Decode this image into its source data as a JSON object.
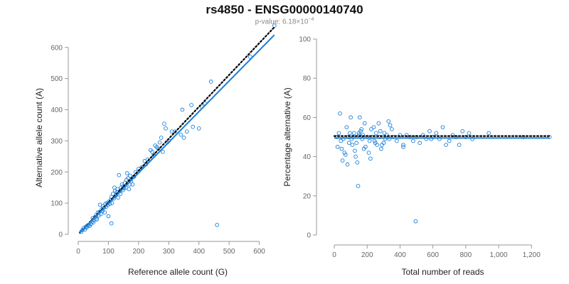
{
  "title": "rs4850 - ENSG00000140740",
  "subtitle": {
    "prefix": "p-value: 6.18×10",
    "exponent": "−4"
  },
  "colors": {
    "points": "#1a7fd9",
    "fit": "#1a7fd9",
    "reference": "#000000"
  },
  "chart_data": [
    {
      "type": "scatter",
      "xlabel": "Reference allele count (G)",
      "ylabel": "Alternative allele count (A)",
      "xlim": [
        0,
        660
      ],
      "ylim": [
        0,
        620
      ],
      "xticks": [
        0,
        100,
        200,
        300,
        400,
        500,
        600
      ],
      "yticks": [
        0,
        100,
        200,
        300,
        400,
        500,
        600
      ],
      "xtick_labels": [
        "0",
        "100",
        "200",
        "300",
        "400",
        "500",
        "600"
      ],
      "ytick_labels": [
        "0",
        "100",
        "200",
        "300",
        "400",
        "500",
        "600"
      ],
      "fit_line": {
        "from": [
          5,
          5
        ],
        "to": [
          650,
          640
        ]
      },
      "reference_line": {
        "from": [
          5,
          5
        ],
        "to": [
          650,
          665
        ]
      },
      "points": [
        [
          10,
          8
        ],
        [
          14,
          14
        ],
        [
          18,
          20
        ],
        [
          22,
          15
        ],
        [
          25,
          24
        ],
        [
          28,
          22
        ],
        [
          30,
          28
        ],
        [
          35,
          30
        ],
        [
          38,
          27
        ],
        [
          42,
          33
        ],
        [
          45,
          40
        ],
        [
          48,
          52
        ],
        [
          50,
          38
        ],
        [
          52,
          45
        ],
        [
          55,
          55
        ],
        [
          58,
          50
        ],
        [
          60,
          62
        ],
        [
          62,
          48
        ],
        [
          65,
          70
        ],
        [
          68,
          60
        ],
        [
          70,
          72
        ],
        [
          72,
          95
        ],
        [
          75,
          65
        ],
        [
          78,
          80
        ],
        [
          80,
          75
        ],
        [
          82,
          90
        ],
        [
          85,
          85
        ],
        [
          88,
          70
        ],
        [
          90,
          98
        ],
        [
          92,
          88
        ],
        [
          95,
          100
        ],
        [
          98,
          94
        ],
        [
          100,
          58
        ],
        [
          102,
          105
        ],
        [
          105,
          98
        ],
        [
          108,
          110
        ],
        [
          110,
          120
        ],
        [
          112,
          100
        ],
        [
          115,
          130
        ],
        [
          118,
          115
        ],
        [
          120,
          150
        ],
        [
          122,
          140
        ],
        [
          125,
          125
        ],
        [
          128,
          135
        ],
        [
          130,
          145
        ],
        [
          132,
          118
        ],
        [
          135,
          190
        ],
        [
          138,
          138
        ],
        [
          140,
          130
        ],
        [
          142,
          150
        ],
        [
          145,
          160
        ],
        [
          148,
          142
        ],
        [
          150,
          155
        ],
        [
          152,
          148
        ],
        [
          155,
          165
        ],
        [
          158,
          150
        ],
        [
          160,
          175
        ],
        [
          162,
          196
        ],
        [
          165,
          180
        ],
        [
          168,
          145
        ],
        [
          170,
          160
        ],
        [
          172,
          188
        ],
        [
          175,
          170
        ],
        [
          180,
          160
        ],
        [
          185,
          185
        ],
        [
          190,
          200
        ],
        [
          200,
          210
        ],
        [
          210,
          215
        ],
        [
          220,
          235
        ],
        [
          225,
          225
        ],
        [
          230,
          240
        ],
        [
          240,
          270
        ],
        [
          245,
          265
        ],
        [
          250,
          255
        ],
        [
          255,
          285
        ],
        [
          260,
          280
        ],
        [
          265,
          275
        ],
        [
          270,
          295
        ],
        [
          275,
          310
        ],
        [
          280,
          265
        ],
        [
          285,
          355
        ],
        [
          290,
          340
        ],
        [
          295,
          295
        ],
        [
          300,
          300
        ],
        [
          310,
          330
        ],
        [
          320,
          330
        ],
        [
          340,
          320
        ],
        [
          345,
          400
        ],
        [
          350,
          310
        ],
        [
          360,
          330
        ],
        [
          375,
          415
        ],
        [
          380,
          345
        ],
        [
          400,
          340
        ],
        [
          410,
          410
        ],
        [
          420,
          420
        ],
        [
          440,
          490
        ],
        [
          460,
          30
        ],
        [
          570,
          570
        ],
        [
          650,
          670
        ],
        [
          110,
          35
        ]
      ]
    },
    {
      "type": "scatter",
      "xlabel": "Total number of reads",
      "ylabel": "Percentage alternative (A)",
      "xlim": [
        0,
        1320
      ],
      "ylim": [
        0,
        100
      ],
      "xticks": [
        0,
        200,
        400,
        600,
        800,
        1000,
        1200
      ],
      "yticks": [
        0,
        20,
        40,
        60,
        80,
        100
      ],
      "xtick_labels": [
        "0",
        "200",
        "400",
        "600",
        "800",
        "1,000",
        "1,200"
      ],
      "ytick_labels": [
        "0",
        "20",
        "40",
        "60",
        "80",
        "100"
      ],
      "fit_line": {
        "from": [
          0,
          49.5
        ],
        "to": [
          1310,
          49.5
        ]
      },
      "reference_line": {
        "from": [
          0,
          50.5
        ],
        "to": [
          1310,
          50.5
        ]
      },
      "points": [
        [
          15,
          50
        ],
        [
          20,
          45
        ],
        [
          28,
          52
        ],
        [
          35,
          62
        ],
        [
          40,
          48
        ],
        [
          45,
          44
        ],
        [
          50,
          38
        ],
        [
          55,
          49
        ],
        [
          62,
          42
        ],
        [
          68,
          41
        ],
        [
          75,
          55
        ],
        [
          80,
          36
        ],
        [
          85,
          50
        ],
        [
          90,
          47
        ],
        [
          95,
          52
        ],
        [
          100,
          60
        ],
        [
          105,
          49
        ],
        [
          110,
          46
        ],
        [
          115,
          50
        ],
        [
          120,
          52
        ],
        [
          125,
          43
        ],
        [
          130,
          40
        ],
        [
          135,
          47
        ],
        [
          140,
          37
        ],
        [
          145,
          25
        ],
        [
          150,
          51
        ],
        [
          155,
          60
        ],
        [
          160,
          53
        ],
        [
          165,
          54
        ],
        [
          170,
          49
        ],
        [
          175,
          51
        ],
        [
          180,
          44
        ],
        [
          185,
          57
        ],
        [
          190,
          45
        ],
        [
          200,
          50
        ],
        [
          210,
          42
        ],
        [
          215,
          48
        ],
        [
          220,
          39
        ],
        [
          225,
          54
        ],
        [
          230,
          50
        ],
        [
          240,
          55
        ],
        [
          245,
          48
        ],
        [
          250,
          47
        ],
        [
          255,
          52
        ],
        [
          260,
          46
        ],
        [
          270,
          57
        ],
        [
          275,
          50
        ],
        [
          280,
          53
        ],
        [
          285,
          44
        ],
        [
          290,
          46
        ],
        [
          300,
          47
        ],
        [
          305,
          52
        ],
        [
          310,
          49
        ],
        [
          320,
          51
        ],
        [
          330,
          58
        ],
        [
          335,
          49
        ],
        [
          340,
          56
        ],
        [
          350,
          54
        ],
        [
          360,
          50
        ],
        [
          380,
          48
        ],
        [
          400,
          51
        ],
        [
          420,
          46
        ],
        [
          440,
          51
        ],
        [
          460,
          50
        ],
        [
          480,
          48
        ],
        [
          495,
          7
        ],
        [
          500,
          50
        ],
        [
          520,
          47
        ],
        [
          540,
          51
        ],
        [
          560,
          49
        ],
        [
          580,
          53
        ],
        [
          600,
          50
        ],
        [
          620,
          52
        ],
        [
          640,
          49
        ],
        [
          660,
          55
        ],
        [
          680,
          46
        ],
        [
          700,
          48
        ],
        [
          720,
          51
        ],
        [
          740,
          50
        ],
        [
          760,
          46
        ],
        [
          780,
          53
        ],
        [
          800,
          50
        ],
        [
          820,
          52
        ],
        [
          840,
          49
        ],
        [
          940,
          52
        ],
        [
          1150,
          50
        ],
        [
          1310,
          50
        ],
        [
          590,
          49
        ],
        [
          420,
          45
        ],
        [
          150,
          52
        ]
      ]
    }
  ]
}
